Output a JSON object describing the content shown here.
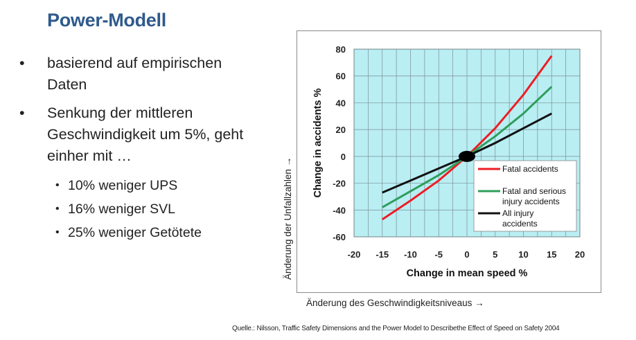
{
  "title": "Power-Modell",
  "bullets": [
    {
      "text": "basierend auf empirischen Daten",
      "sub": []
    },
    {
      "text": "Senkung der mittleren Geschwindigkeit um 5%, geht einher mit …",
      "sub": [
        "10% weniger UPS",
        "16% weniger SVL",
        "25% weniger Getötete"
      ]
    }
  ],
  "axis_notes": {
    "vertical": "Änderung der Unfallzahlen →",
    "horizontal": "Änderung des Geschwindigkeitsniveaus →"
  },
  "source": "Quelle.: Nilsson, Traffic Safety Dimensions and the Power Model to Describethe Effect of Speed on Safety 2004",
  "colors": {
    "title": "#2f5a8c",
    "plot_bg": "#b9eef3",
    "fatal": "#ee1c24",
    "serious": "#2e9e5b",
    "injury": "#111111"
  },
  "chart_data": {
    "type": "line",
    "xlabel": "Change in mean speed %",
    "ylabel": "Change in accidents %",
    "xlim": [
      -20,
      20
    ],
    "ylim": [
      -60,
      80
    ],
    "xticks": [
      -20,
      -15,
      -10,
      -5,
      0,
      5,
      10,
      15,
      20
    ],
    "yticks": [
      80,
      60,
      40,
      20,
      0,
      -20,
      -40,
      -60
    ],
    "grid": true,
    "legend_position": "bottom-right",
    "series": [
      {
        "name": "Fatal accidents",
        "color": "#ee1c24",
        "x": [
          -15,
          -10,
          -5,
          0,
          5,
          10,
          15
        ],
        "y": [
          -47,
          -33,
          -18,
          0,
          21,
          46,
          75
        ]
      },
      {
        "name": "Fatal and serious injury accidents",
        "color": "#2e9e5b",
        "x": [
          -15,
          -10,
          -5,
          0,
          5,
          10,
          15
        ],
        "y": [
          -38,
          -26,
          -14,
          0,
          15,
          32,
          52
        ]
      },
      {
        "name": "All injury accidents",
        "color": "#111111",
        "x": [
          -15,
          -10,
          -5,
          0,
          5,
          10,
          15
        ],
        "y": [
          -27,
          -18,
          -9,
          0,
          10,
          21,
          32
        ]
      }
    ]
  }
}
